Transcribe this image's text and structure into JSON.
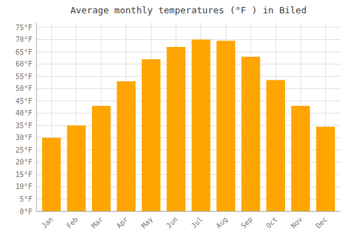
{
  "chart_data": {
    "type": "bar",
    "title": "Average monthly temperatures (°F ) in Biled",
    "categories": [
      "Jan",
      "Feb",
      "Mar",
      "Apr",
      "May",
      "Jun",
      "Jul",
      "Aug",
      "Sep",
      "Oct",
      "Nov",
      "Dec"
    ],
    "values": [
      30,
      35,
      43,
      53,
      62,
      67,
      70,
      69.5,
      63,
      53.5,
      43,
      34.5
    ],
    "color": "#FFA500",
    "ylim": [
      0,
      77
    ],
    "yticks": [
      {
        "value": 0,
        "label": "0°F"
      },
      {
        "value": 5,
        "label": "5°F"
      },
      {
        "value": 10,
        "label": "10°F"
      },
      {
        "value": 15,
        "label": "15°F"
      },
      {
        "value": 20,
        "label": "20°F"
      },
      {
        "value": 25,
        "label": "25°F"
      },
      {
        "value": 30,
        "label": "30°F"
      },
      {
        "value": 35,
        "label": "35°F"
      },
      {
        "value": 40,
        "label": "40°F"
      },
      {
        "value": 45,
        "label": "45°F"
      },
      {
        "value": 50,
        "label": "50°F"
      },
      {
        "value": 55,
        "label": "55°F"
      },
      {
        "value": 60,
        "label": "60°F"
      },
      {
        "value": 65,
        "label": "65°F"
      },
      {
        "value": 70,
        "label": "70°F"
      },
      {
        "value": 75,
        "label": "75°F"
      }
    ],
    "grid": true
  }
}
